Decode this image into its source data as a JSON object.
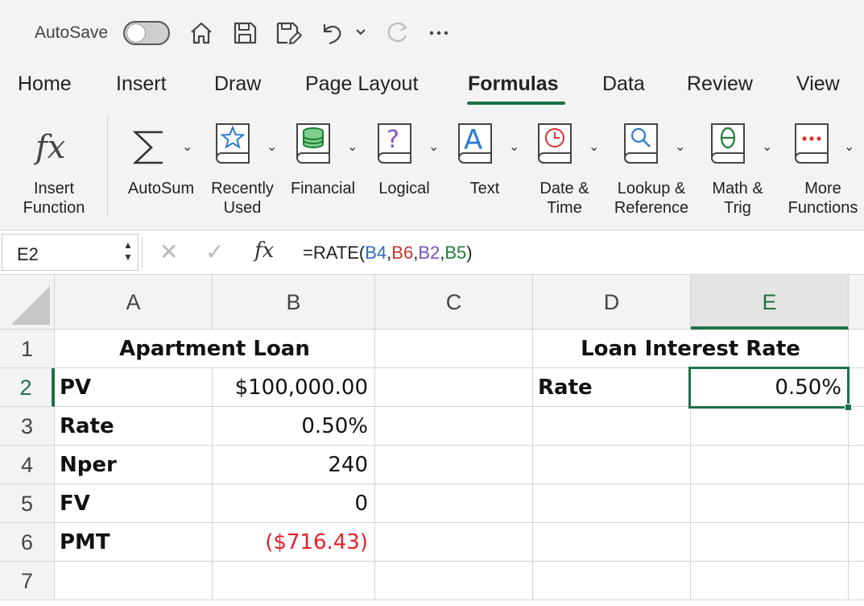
{
  "qat": {
    "autosave_label": "AutoSave",
    "icons": [
      "home-icon",
      "save-icon",
      "save-as-icon",
      "undo-icon",
      "redo-icon",
      "more-icon"
    ]
  },
  "tabs": [
    {
      "label": "Home",
      "active": false
    },
    {
      "label": "Insert",
      "active": false
    },
    {
      "label": "Draw",
      "active": false
    },
    {
      "label": "Page Layout",
      "active": false
    },
    {
      "label": "Formulas",
      "active": true
    },
    {
      "label": "Data",
      "active": false
    },
    {
      "label": "Review",
      "active": false
    },
    {
      "label": "View",
      "active": false
    }
  ],
  "ribbon": {
    "insert_function": "Insert\nFunction",
    "autosum": "AutoSum",
    "recently_used": "Recently\nUsed",
    "financial": "Financial",
    "logical": "Logical",
    "text": "Text",
    "date_time": "Date &\nTime",
    "lookup_reference": "Lookup &\nReference",
    "math_trig": "Math &\nTrig",
    "more_functions": "More\nFunctions",
    "colors": {
      "recently_used": "#2b7bd0",
      "financial": "#1e7d33",
      "logical": "#8a4fc0",
      "text": "#2b7bd0",
      "date_time": "#d9312b",
      "lookup_reference": "#2b7bd0",
      "math_trig": "#1e7d33",
      "more_functions": "#d9312b"
    }
  },
  "formula_bar": {
    "name_box": "E2",
    "formula_prefix": "=RATE(",
    "ref1": "B4",
    "ref2": "B6",
    "ref3": "B2",
    "ref4": "B5",
    "comma": ",",
    "formula_suffix": ")"
  },
  "grid": {
    "columns": [
      "A",
      "B",
      "C",
      "D",
      "E"
    ],
    "rows": [
      "1",
      "2",
      "3",
      "4",
      "5",
      "6",
      "7"
    ],
    "active_cell": "E2",
    "cells": {
      "A1B1": "Apartment Loan",
      "D1E1": "Loan Interest Rate",
      "A2": "PV",
      "B2": "$100,000.00",
      "A3": "Rate",
      "B3": "0.50%",
      "A4": "Nper",
      "B4": "240",
      "A5": "FV",
      "B5": "0",
      "A6": "PMT",
      "B6": "($716.43)",
      "D2": "Rate",
      "E2": "0.50%"
    }
  }
}
